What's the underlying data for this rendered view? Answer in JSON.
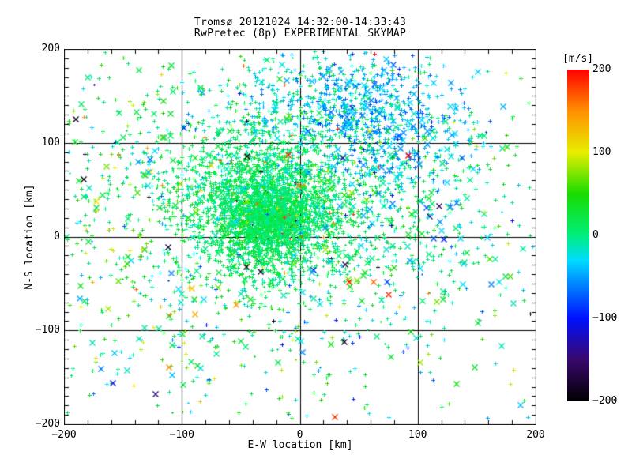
{
  "window": {
    "background": "#ffffff"
  },
  "chart_data": {
    "type": "scatter",
    "title": "Tromsø 20121024 14:32:00-14:33:43",
    "subtitle": "RwPretec (8p) EXPERIMENTAL SKYMAP",
    "xlabel": "E-W location [km]",
    "ylabel": "N-S location [km]",
    "xlim": [
      -200,
      200
    ],
    "ylim": [
      -200,
      200
    ],
    "xticks": [
      -200,
      -100,
      0,
      100,
      200
    ],
    "yticks": [
      -200,
      -100,
      0,
      100,
      200
    ],
    "x_minor_step": 20,
    "y_minor_step": 10,
    "grid_x": [
      -100,
      0,
      100
    ],
    "grid_y": [
      -100,
      0,
      100
    ],
    "grid_on": true,
    "axis_color": "#000000",
    "marker_symbols": [
      "plus",
      "cross"
    ],
    "colorbar": {
      "label": "[m/s]",
      "units": "m/s",
      "min": -200,
      "max": 200,
      "ticks": [
        200,
        100,
        0,
        -100,
        -200
      ],
      "stops": [
        {
          "v": -200,
          "c": "#000000"
        },
        {
          "v": -150,
          "c": "#38076b"
        },
        {
          "v": -100,
          "c": "#0010ff"
        },
        {
          "v": -55,
          "c": "#0090ff"
        },
        {
          "v": -30,
          "c": "#00dcff"
        },
        {
          "v": 0,
          "c": "#00ee7c"
        },
        {
          "v": 50,
          "c": "#18dc00"
        },
        {
          "v": 100,
          "c": "#e8ee00"
        },
        {
          "v": 150,
          "c": "#ff9000"
        },
        {
          "v": 200,
          "c": "#ff0000"
        }
      ]
    },
    "seed": 20121024,
    "anomaly_fraction": 0.012,
    "point_clusters": [
      {
        "name": "dense-subcore",
        "n": 950,
        "cx": -22,
        "cy": 18,
        "sx": 15,
        "sy": 15,
        "vm": 15,
        "vs": 13,
        "cross": 0.03
      },
      {
        "name": "core",
        "n": 2100,
        "cx": -28,
        "cy": 28,
        "sx": 33,
        "sy": 38,
        "vm": 12,
        "vs": 17,
        "cross": 0.05
      },
      {
        "name": "halo",
        "n": 1250,
        "cx": -12,
        "cy": 62,
        "sx": 82,
        "sy": 62,
        "vm": 8,
        "vs": 24,
        "cross": 0.08
      },
      {
        "name": "northeast-cyan",
        "n": 520,
        "cx": 64,
        "cy": 126,
        "sx": 38,
        "sy": 36,
        "vm": -48,
        "vs": 20,
        "cross": 0.13
      },
      {
        "name": "north-cyan",
        "n": 240,
        "cx": 22,
        "cy": 152,
        "sx": 46,
        "sy": 28,
        "vm": -30,
        "vs": 22,
        "cross": 0.08
      },
      {
        "name": "east-sparse",
        "n": 190,
        "cx": 98,
        "cy": 35,
        "sx": 45,
        "sy": 62,
        "vm": -22,
        "vs": 32,
        "cross": 0.25
      },
      {
        "name": "south-sparse",
        "n": 230,
        "cx": -15,
        "cy": -85,
        "sx": 95,
        "sy": 55,
        "vm": 2,
        "vs": 38,
        "cross": 0.28
      },
      {
        "name": "west-sparse",
        "n": 150,
        "cx": -152,
        "cy": 25,
        "sx": 38,
        "sy": 108,
        "vm": 42,
        "vs": 52,
        "cross": 0.15
      },
      {
        "name": "background",
        "n": 280,
        "uniform": true,
        "vm": 12,
        "vs": 58,
        "cross": 0.2
      }
    ],
    "outliers": {
      "warm": {
        "n": 20,
        "v_min": 150,
        "v_max": 200,
        "cx": 5,
        "cy": 30,
        "sx": 85,
        "sy": 80,
        "cross": 0.5
      },
      "dark": {
        "n": 14,
        "v_min": -200,
        "v_max": -155,
        "cx": 0,
        "cy": 20,
        "sx": 70,
        "sy": 70,
        "cross": 0.6
      }
    }
  }
}
